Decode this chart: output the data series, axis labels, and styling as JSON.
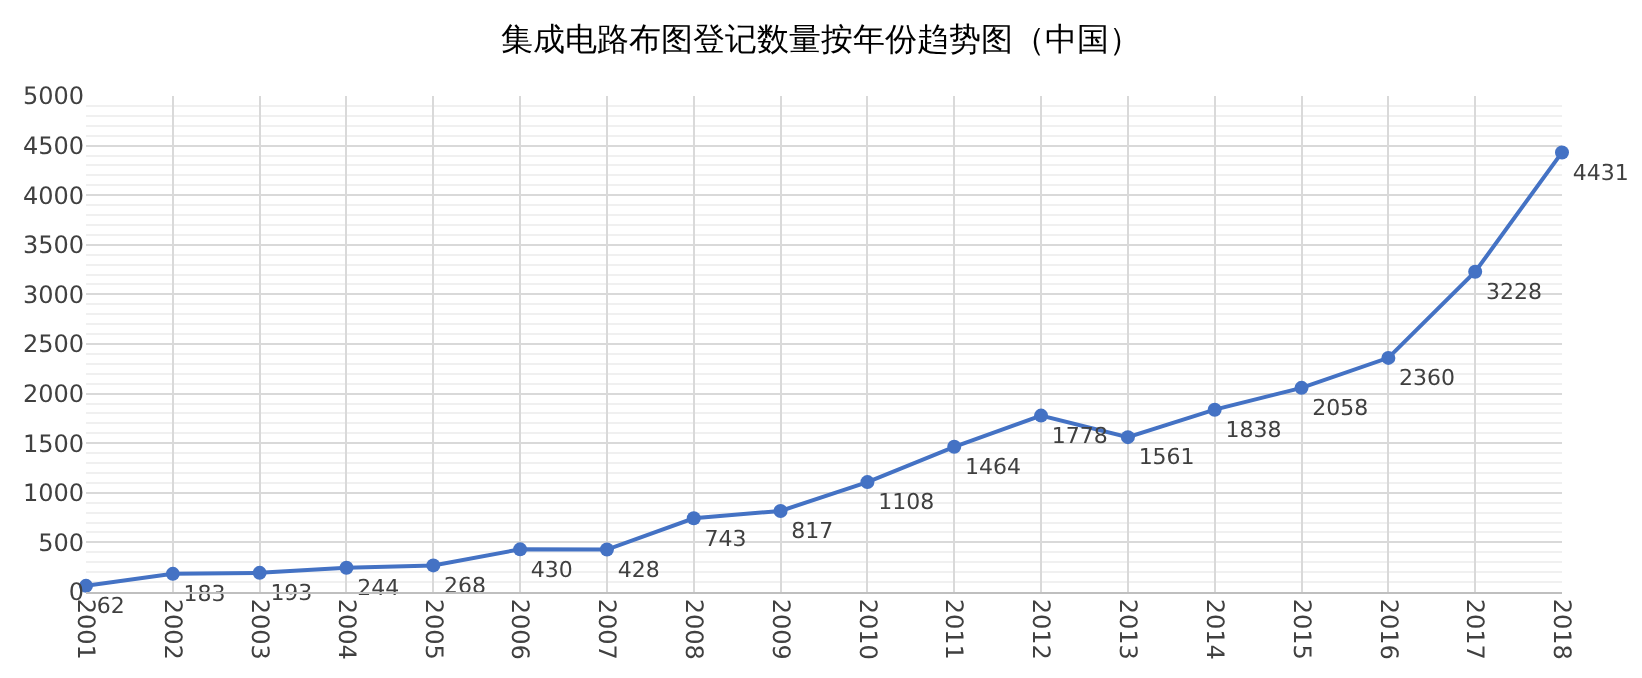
{
  "chart_data": {
    "type": "line",
    "title": "集成电路布图登记数量按年份趋势图（中国）",
    "categories": [
      "2001",
      "2002",
      "2003",
      "2004",
      "2005",
      "2006",
      "2007",
      "2008",
      "2009",
      "2010",
      "2011",
      "2012",
      "2013",
      "2014",
      "2015",
      "2016",
      "2017",
      "2018"
    ],
    "series": [
      {
        "color": "#4472c4",
        "values": [
          62,
          183,
          193,
          244,
          268,
          430,
          428,
          743,
          817,
          1108,
          1464,
          1778,
          1561,
          1838,
          2058,
          2360,
          3228,
          4431
        ]
      }
    ],
    "ylim": [
      0,
      5000
    ],
    "yticks": [
      0,
      500,
      1000,
      1500,
      2000,
      2500,
      3000,
      3500,
      4000,
      4500,
      5000
    ],
    "grid": true,
    "marker": "circle",
    "line_style": "solid",
    "data_labels": true,
    "legend": false
  }
}
